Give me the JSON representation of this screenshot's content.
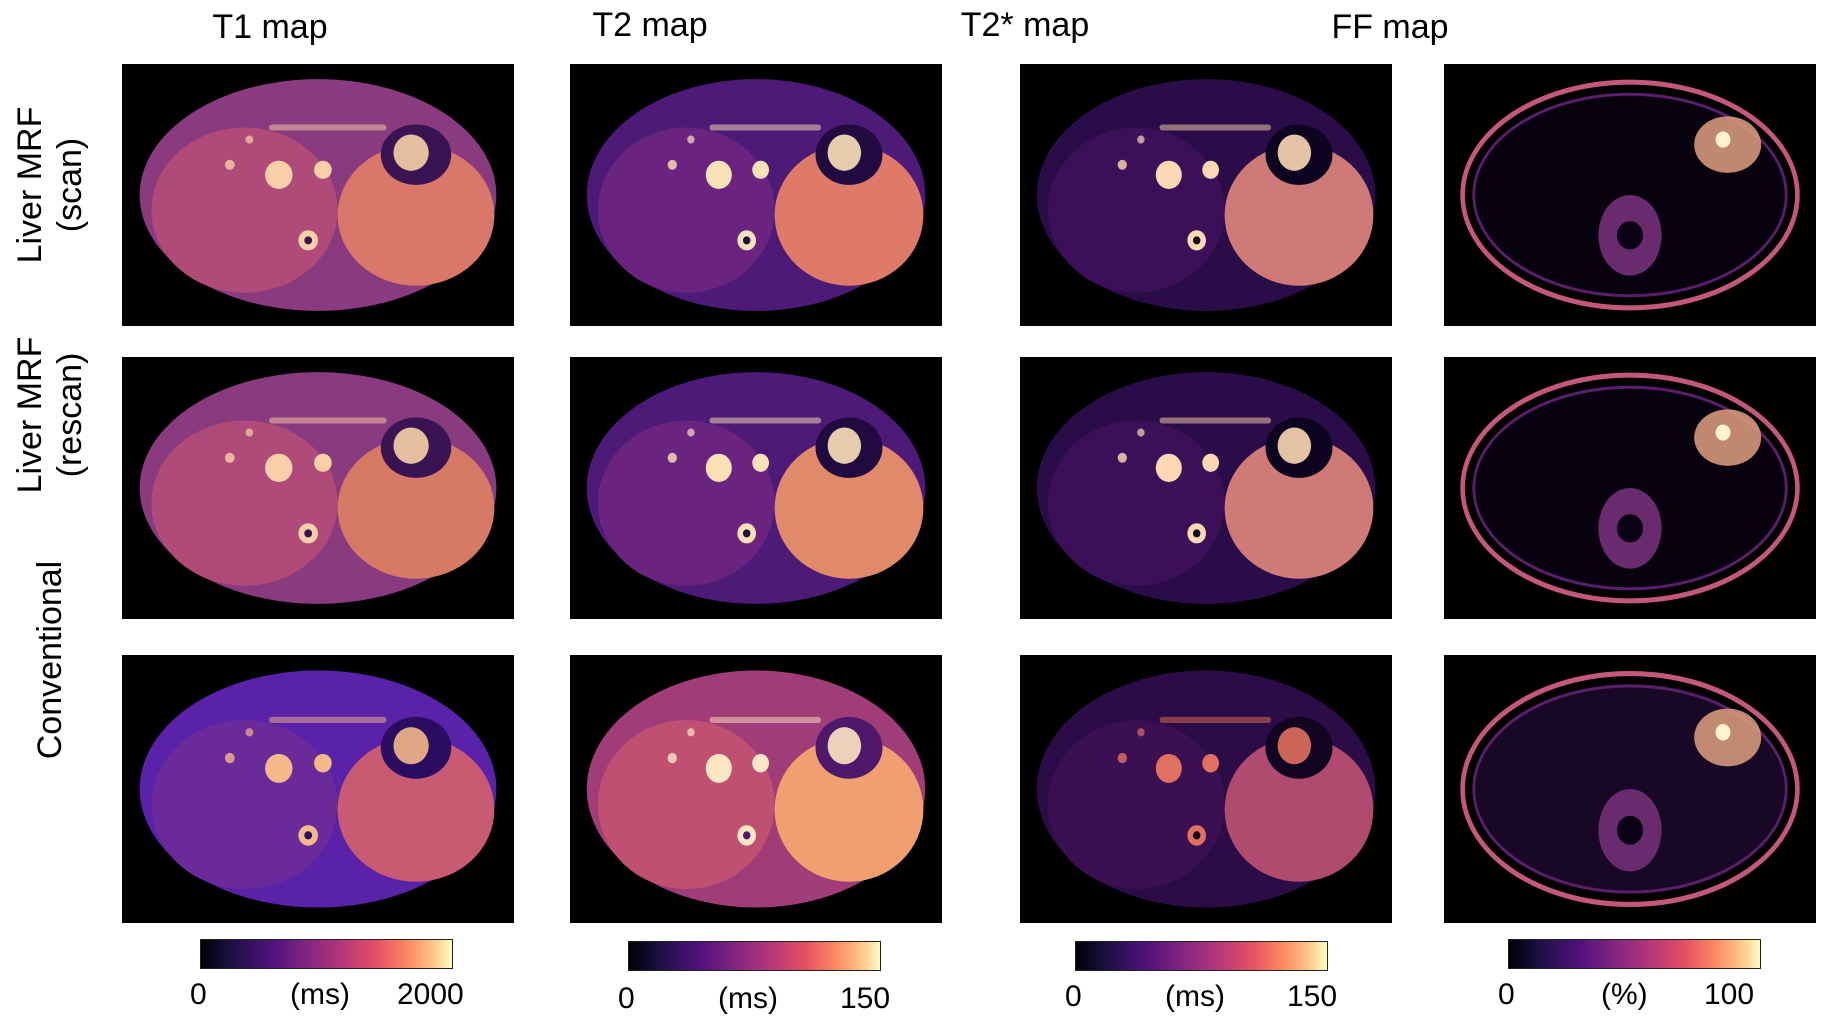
{
  "columns": [
    {
      "title": "T1 map",
      "colorbar": {
        "min": "0",
        "unit": "(ms)",
        "max": "2000"
      }
    },
    {
      "title": "T2 map",
      "colorbar": {
        "min": "0",
        "unit": "(ms)",
        "max": "150"
      }
    },
    {
      "title": "T2* map",
      "colorbar": {
        "min": "0",
        "unit": "(ms)",
        "max": "150"
      }
    },
    {
      "title": "FF map",
      "colorbar": {
        "min": "0",
        "unit": "(%)",
        "max": "100"
      }
    }
  ],
  "rows": [
    {
      "line1": "Liver MRF",
      "line2": "(scan)"
    },
    {
      "line1": "Liver MRF",
      "line2": "(rescan)"
    },
    {
      "line1": "Conventional",
      "line2": ""
    }
  ],
  "colormap": "magma"
}
